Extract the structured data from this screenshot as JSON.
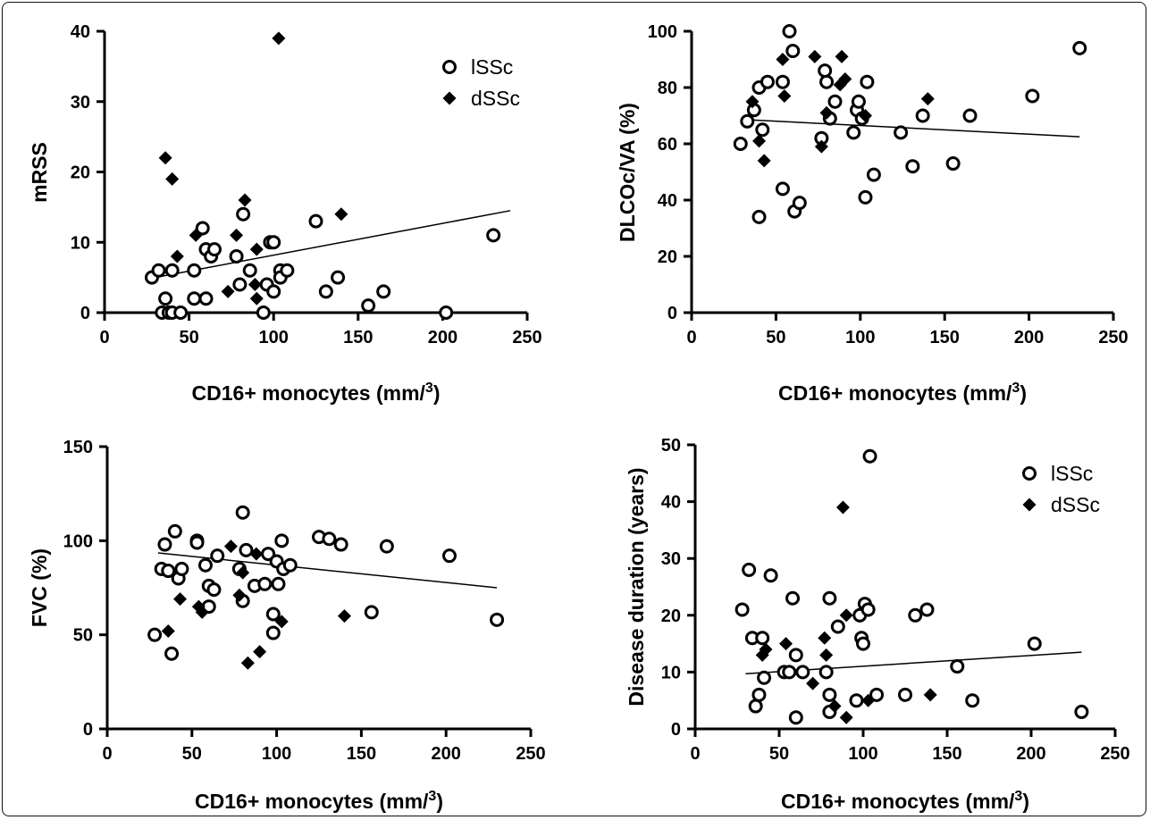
{
  "legend_labels": {
    "lssc": "lSSc",
    "dssc": "dSSc"
  },
  "chart_data": [
    {
      "type": "scatter",
      "xlabel": "CD16+ monocytes (mm/3)",
      "ylabel": "mRSS",
      "xlim": [
        0,
        250
      ],
      "ylim": [
        0,
        40
      ],
      "xticks": [
        0,
        50,
        100,
        150,
        200,
        250
      ],
      "yticks": [
        0,
        10,
        20,
        30,
        40
      ],
      "legend": "top-right",
      "series": [
        {
          "name": "lSSc",
          "marker": "open-circle",
          "points": [
            [
              28,
              5
            ],
            [
              32,
              6
            ],
            [
              34,
              0
            ],
            [
              36,
              2
            ],
            [
              38,
              0
            ],
            [
              40,
              6
            ],
            [
              40,
              0
            ],
            [
              45,
              0
            ],
            [
              53,
              6
            ],
            [
              53,
              2
            ],
            [
              58,
              12
            ],
            [
              60,
              2
            ],
            [
              60,
              9
            ],
            [
              63,
              8
            ],
            [
              65,
              9
            ],
            [
              78,
              8
            ],
            [
              80,
              4
            ],
            [
              82,
              14
            ],
            [
              86,
              6
            ],
            [
              94,
              0
            ],
            [
              96,
              4
            ],
            [
              98,
              10
            ],
            [
              100,
              3
            ],
            [
              100,
              10
            ],
            [
              104,
              6
            ],
            [
              104,
              5
            ],
            [
              108,
              6
            ],
            [
              125,
              13
            ],
            [
              131,
              3
            ],
            [
              138,
              5
            ],
            [
              156,
              1
            ],
            [
              165,
              3
            ],
            [
              202,
              0
            ],
            [
              230,
              11
            ]
          ]
        },
        {
          "name": "dSSc",
          "marker": "filled-diamond",
          "points": [
            [
              36,
              22
            ],
            [
              40,
              19
            ],
            [
              43,
              8
            ],
            [
              54,
              11
            ],
            [
              73,
              3
            ],
            [
              78,
              11
            ],
            [
              83,
              16
            ],
            [
              89,
              4
            ],
            [
              90,
              9
            ],
            [
              90,
              2
            ],
            [
              103,
              39
            ],
            [
              140,
              14
            ]
          ]
        }
      ],
      "trendline": [
        [
          30,
          5
        ],
        [
          240,
          14.5
        ]
      ]
    },
    {
      "type": "scatter",
      "xlabel": "CD16+ monocytes (mm/3)",
      "ylabel": "DLCOc/VA (%)",
      "xlim": [
        0,
        250
      ],
      "ylim": [
        0,
        100
      ],
      "xticks": [
        0,
        50,
        100,
        150,
        200,
        250
      ],
      "yticks": [
        0,
        20,
        40,
        60,
        80,
        100
      ],
      "series": [
        {
          "name": "lSSc",
          "marker": "open-circle",
          "points": [
            [
              29,
              60
            ],
            [
              33,
              68
            ],
            [
              37,
              72
            ],
            [
              40,
              34
            ],
            [
              42,
              65
            ],
            [
              40,
              80
            ],
            [
              45,
              82
            ],
            [
              54,
              82
            ],
            [
              54,
              44
            ],
            [
              58,
              100
            ],
            [
              60,
              93
            ],
            [
              61,
              36
            ],
            [
              64,
              39
            ],
            [
              77,
              62
            ],
            [
              79,
              86
            ],
            [
              80,
              82
            ],
            [
              82,
              69
            ],
            [
              85,
              75
            ],
            [
              96,
              64
            ],
            [
              98,
              72
            ],
            [
              99,
              75
            ],
            [
              101,
              69
            ],
            [
              103,
              41
            ],
            [
              104,
              82
            ],
            [
              108,
              49
            ],
            [
              124,
              64
            ],
            [
              131,
              52
            ],
            [
              137,
              70
            ],
            [
              155,
              53
            ],
            [
              165,
              70
            ],
            [
              202,
              77
            ],
            [
              230,
              94
            ]
          ]
        },
        {
          "name": "dSSc",
          "marker": "filled-diamond",
          "points": [
            [
              36,
              75
            ],
            [
              40,
              61
            ],
            [
              43,
              54
            ],
            [
              54,
              90
            ],
            [
              55,
              77
            ],
            [
              73,
              91
            ],
            [
              77,
              59
            ],
            [
              80,
              71
            ],
            [
              88,
              81
            ],
            [
              89,
              91
            ],
            [
              91,
              83
            ],
            [
              103,
              70
            ],
            [
              140,
              76
            ]
          ]
        }
      ],
      "trendline": [
        [
          35,
          68.5
        ],
        [
          230,
          62.5
        ]
      ]
    },
    {
      "type": "scatter",
      "xlabel": "CD16+ monocytes (mm/3)",
      "ylabel": "FVC (%)",
      "xlim": [
        0,
        250
      ],
      "ylim": [
        0,
        150
      ],
      "xticks": [
        0,
        50,
        100,
        150,
        200,
        250
      ],
      "yticks": [
        0,
        50,
        100,
        150
      ],
      "series": [
        {
          "name": "lSSc",
          "marker": "open-circle",
          "points": [
            [
              28,
              50
            ],
            [
              32,
              85
            ],
            [
              34,
              98
            ],
            [
              36,
              84
            ],
            [
              38,
              40
            ],
            [
              40,
              105
            ],
            [
              42,
              80
            ],
            [
              44,
              85
            ],
            [
              53,
              100
            ],
            [
              53,
              99
            ],
            [
              58,
              87
            ],
            [
              60,
              76
            ],
            [
              60,
              65
            ],
            [
              63,
              74
            ],
            [
              65,
              92
            ],
            [
              78,
              85
            ],
            [
              80,
              115
            ],
            [
              80,
              68
            ],
            [
              82,
              95
            ],
            [
              87,
              76
            ],
            [
              93,
              77
            ],
            [
              95,
              93
            ],
            [
              98,
              51
            ],
            [
              98,
              61
            ],
            [
              100,
              89
            ],
            [
              101,
              77
            ],
            [
              103,
              100
            ],
            [
              104,
              85
            ],
            [
              108,
              87
            ],
            [
              125,
              102
            ],
            [
              131,
              101
            ],
            [
              138,
              98
            ],
            [
              156,
              62
            ],
            [
              165,
              97
            ],
            [
              202,
              92
            ],
            [
              230,
              58
            ]
          ]
        },
        {
          "name": "dSSc",
          "marker": "filled-diamond",
          "points": [
            [
              36,
              52
            ],
            [
              43,
              69
            ],
            [
              54,
              65
            ],
            [
              56,
              62
            ],
            [
              73,
              97
            ],
            [
              78,
              71
            ],
            [
              80,
              83
            ],
            [
              83,
              35
            ],
            [
              88,
              93
            ],
            [
              90,
              41
            ],
            [
              103,
              57
            ],
            [
              140,
              60
            ]
          ]
        }
      ],
      "trendline": [
        [
          30,
          93.5
        ],
        [
          230,
          75
        ]
      ]
    },
    {
      "type": "scatter",
      "xlabel": "CD16+ monocytes (mm/3)",
      "ylabel": "Disease duration (years)",
      "xlim": [
        0,
        250
      ],
      "ylim": [
        0,
        50
      ],
      "xticks": [
        0,
        50,
        100,
        150,
        200,
        250
      ],
      "yticks": [
        0,
        10,
        20,
        30,
        40,
        50
      ],
      "legend": "top-right",
      "series": [
        {
          "name": "lSSc",
          "marker": "open-circle",
          "points": [
            [
              28,
              21
            ],
            [
              32,
              28
            ],
            [
              34,
              16
            ],
            [
              36,
              4
            ],
            [
              38,
              6
            ],
            [
              40,
              16
            ],
            [
              41,
              9
            ],
            [
              45,
              27
            ],
            [
              53,
              10
            ],
            [
              56,
              10
            ],
            [
              58,
              23
            ],
            [
              60,
              13
            ],
            [
              60,
              2
            ],
            [
              64,
              10
            ],
            [
              78,
              10
            ],
            [
              80,
              23
            ],
            [
              80,
              6
            ],
            [
              80,
              3
            ],
            [
              85,
              18
            ],
            [
              96,
              5
            ],
            [
              98,
              20
            ],
            [
              99,
              16
            ],
            [
              100,
              15
            ],
            [
              101,
              22
            ],
            [
              103,
              21
            ],
            [
              104,
              48
            ],
            [
              108,
              6
            ],
            [
              125,
              6
            ],
            [
              131,
              20
            ],
            [
              138,
              21
            ],
            [
              156,
              11
            ],
            [
              165,
              5
            ],
            [
              202,
              15
            ],
            [
              230,
              3
            ]
          ]
        },
        {
          "name": "dSSc",
          "marker": "filled-diamond",
          "points": [
            [
              40,
              13
            ],
            [
              42,
              14
            ],
            [
              54,
              15
            ],
            [
              70,
              8
            ],
            [
              77,
              16
            ],
            [
              78,
              13
            ],
            [
              83,
              4
            ],
            [
              88,
              39
            ],
            [
              90,
              20
            ],
            [
              90,
              2
            ],
            [
              103,
              5
            ],
            [
              140,
              6
            ]
          ]
        }
      ],
      "trendline": [
        [
          30,
          9.7
        ],
        [
          230,
          13.5
        ]
      ]
    }
  ]
}
